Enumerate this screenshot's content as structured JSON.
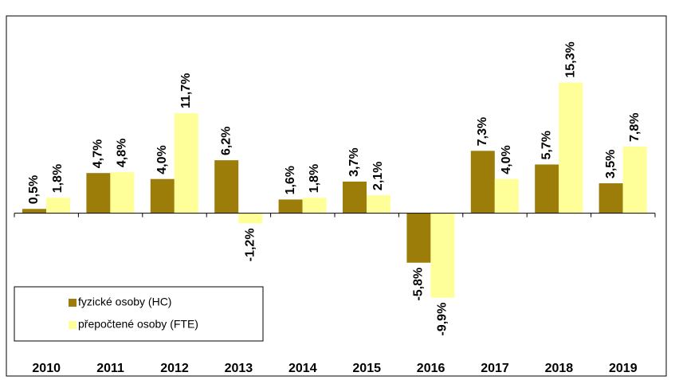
{
  "chart_data": {
    "type": "bar",
    "categories": [
      "2010",
      "2011",
      "2012",
      "2013",
      "2014",
      "2015",
      "2016",
      "2017",
      "2018",
      "2019"
    ],
    "series": [
      {
        "name": "fyzické osoby (HC)",
        "color": "#9c7d0a",
        "values": [
          0.5,
          4.7,
          4.0,
          6.2,
          1.6,
          3.7,
          -5.8,
          7.3,
          5.7,
          3.5
        ],
        "value_labels": [
          "0,5%",
          "4,7%",
          "4,0%",
          "6,2%",
          "1,6%",
          "3,7%",
          "-5,8%",
          "7,3%",
          "5,7%",
          "3,5%"
        ]
      },
      {
        "name": "přepočtené osoby (FTE)",
        "color": "#ffff99",
        "values": [
          1.8,
          4.8,
          11.7,
          -1.2,
          1.8,
          2.1,
          -9.9,
          4.0,
          15.3,
          7.8
        ],
        "value_labels": [
          "1,8%",
          "4,8%",
          "11,7%",
          "-1,2%",
          "1,8%",
          "2,1%",
          "-9,9%",
          "4,0%",
          "15,3%",
          "7,8%"
        ]
      }
    ],
    "ylim": [
      -18.7,
      23.1
    ],
    "legend": "bottom-left"
  }
}
